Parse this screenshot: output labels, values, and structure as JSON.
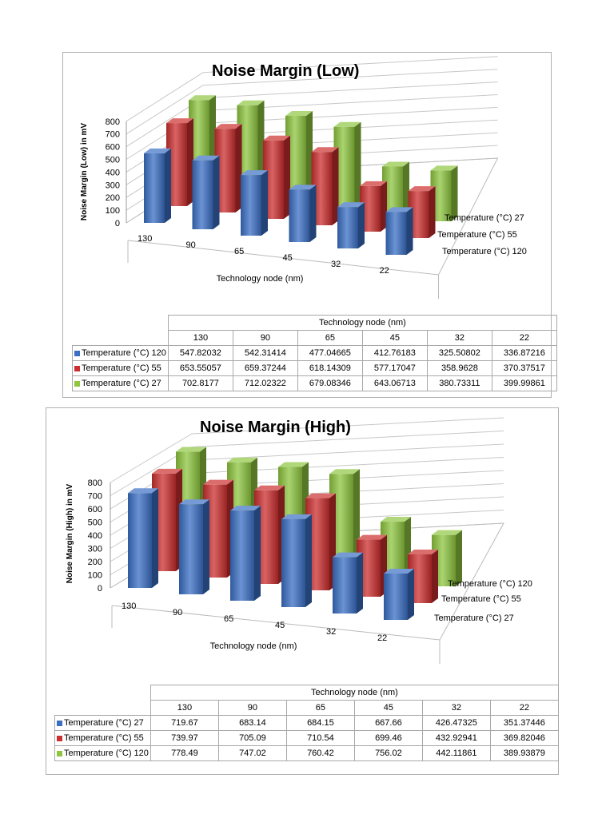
{
  "chart_data": [
    {
      "type": "bar",
      "subtype": "3d-clustered-depth",
      "title": "Noise Margin (Low)",
      "xlabel": "Technology node (nm)",
      "ylabel": "Noise Margin (Low) in mV",
      "categories": [
        "130",
        "90",
        "65",
        "45",
        "32",
        "22"
      ],
      "ylim": [
        0,
        800
      ],
      "yticks": [
        "0",
        "100",
        "200",
        "300",
        "400",
        "500",
        "600",
        "700",
        "800"
      ],
      "grid": true,
      "series": [
        {
          "name": "Temperature (°C) 120",
          "color": "#3a6fc4",
          "values": [
            547.82032,
            542.31414,
            477.04665,
            412.76183,
            325.50802,
            336.87216
          ]
        },
        {
          "name": "Temperature (°C) 55",
          "color": "#cc2f2f",
          "values": [
            653.55057,
            659.37244,
            618.14309,
            577.17047,
            358.9628,
            370.37517
          ]
        },
        {
          "name": "Temperature (°C) 27",
          "color": "#8ec63f",
          "values": [
            702.8177,
            712.02322,
            679.08346,
            643.06713,
            380.73311,
            399.99861
          ]
        }
      ],
      "table_display": [
        [
          "547.82032",
          "542.31414",
          "477.04665",
          "412.76183",
          "325.50802",
          "336.87216"
        ],
        [
          "653.55057",
          "659.37244",
          "618.14309",
          "577.17047",
          "358.9628",
          "370.37517"
        ],
        [
          "702.8177",
          "712.02322",
          "679.08346",
          "643.06713",
          "380.73311",
          "399.99861"
        ]
      ]
    },
    {
      "type": "bar",
      "subtype": "3d-clustered-depth",
      "title": "Noise Margin (High)",
      "xlabel": "Technology node (nm)",
      "ylabel": "Noise Margin (High) in mV",
      "categories": [
        "130",
        "90",
        "65",
        "45",
        "32",
        "22"
      ],
      "ylim": [
        0,
        800
      ],
      "yticks": [
        "0",
        "100",
        "200",
        "300",
        "400",
        "500",
        "600",
        "700",
        "800"
      ],
      "grid": true,
      "series": [
        {
          "name": "Temperature (°C) 27",
          "color": "#3a6fc4",
          "values": [
            719.67,
            683.14,
            684.15,
            667.66,
            426.47325,
            351.37446
          ]
        },
        {
          "name": "Temperature (°C) 55",
          "color": "#cc2f2f",
          "values": [
            739.97,
            705.09,
            710.54,
            699.46,
            432.92941,
            369.82046
          ]
        },
        {
          "name": "Temperature (°C) 120",
          "color": "#8ec63f",
          "values": [
            778.49,
            747.02,
            760.42,
            756.02,
            442.11861,
            389.93879
          ]
        }
      ],
      "table_display": [
        [
          "719.67",
          "683.14",
          "684.15",
          "667.66",
          "426.47325",
          "351.37446"
        ],
        [
          "739.97",
          "705.09",
          "710.54",
          "699.46",
          "432.92941",
          "369.82046"
        ],
        [
          "778.49",
          "747.02",
          "760.42",
          "756.02",
          "442.11861",
          "389.93879"
        ]
      ]
    }
  ]
}
